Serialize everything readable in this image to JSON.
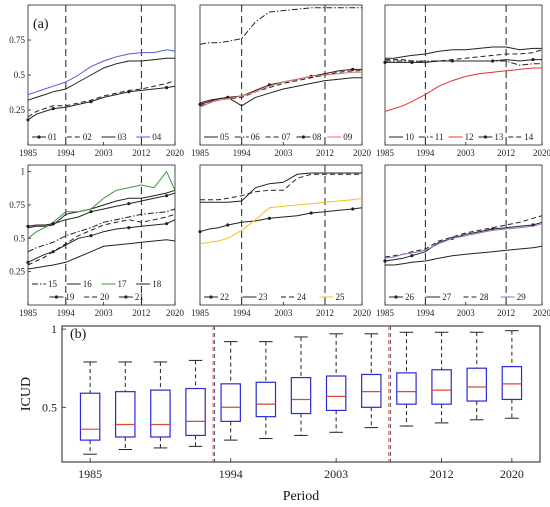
{
  "panel_label_a": "(a)",
  "panel_label_b": "(b)",
  "chart_data": [
    {
      "type": "line",
      "panel": 1,
      "x": [
        1985,
        1987,
        1989,
        1991,
        1994,
        1997,
        2000,
        2003,
        2006,
        2009,
        2012,
        2015,
        2018,
        2020
      ],
      "xticks": [
        "1985",
        "1994",
        "2003",
        "2012",
        "2020"
      ],
      "yticks": [
        "0.25",
        "0.5",
        "0.75"
      ],
      "ylim": [
        0.0,
        1.0
      ],
      "series": [
        {
          "name": "01",
          "style": "solid-dot",
          "color": "#222222",
          "values": [
            0.18,
            0.22,
            0.24,
            0.26,
            0.27,
            0.29,
            0.31,
            0.34,
            0.36,
            0.38,
            0.39,
            0.4,
            0.41,
            0.42
          ]
        },
        {
          "name": "02",
          "style": "dash",
          "color": "#222222",
          "values": [
            0.2,
            0.24,
            0.26,
            0.28,
            0.28,
            0.3,
            0.32,
            0.35,
            0.37,
            0.39,
            0.4,
            0.42,
            0.44,
            0.46
          ]
        },
        {
          "name": "03",
          "style": "solid",
          "color": "#222222",
          "values": [
            0.32,
            0.34,
            0.36,
            0.38,
            0.4,
            0.45,
            0.5,
            0.55,
            0.58,
            0.6,
            0.6,
            0.61,
            0.62,
            0.62
          ]
        },
        {
          "name": "04",
          "style": "solid",
          "color": "#4f5bd5",
          "values": [
            0.36,
            0.38,
            0.4,
            0.42,
            0.45,
            0.5,
            0.56,
            0.6,
            0.63,
            0.65,
            0.66,
            0.66,
            0.68,
            0.67
          ]
        }
      ]
    },
    {
      "type": "line",
      "panel": 2,
      "x": [
        1985,
        1987,
        1989,
        1991,
        1994,
        1997,
        2000,
        2003,
        2006,
        2009,
        2012,
        2015,
        2018,
        2020
      ],
      "xticks": [
        "1985",
        "1994",
        "2003",
        "2012",
        "2020"
      ],
      "yticks": [],
      "ylim": [
        0.0,
        1.0
      ],
      "series": [
        {
          "name": "05",
          "style": "solid",
          "color": "#222222",
          "values": [
            0.3,
            0.32,
            0.33,
            0.34,
            0.28,
            0.34,
            0.37,
            0.4,
            0.42,
            0.44,
            0.46,
            0.47,
            0.48,
            0.48
          ]
        },
        {
          "name": "06",
          "style": "dashdot",
          "color": "#222222",
          "values": [
            0.72,
            0.73,
            0.73,
            0.74,
            0.76,
            0.88,
            0.95,
            0.96,
            0.97,
            0.98,
            0.98,
            0.98,
            0.98,
            0.98
          ]
        },
        {
          "name": "07",
          "style": "dash",
          "color": "#222222",
          "values": [
            0.28,
            0.3,
            0.32,
            0.33,
            0.34,
            0.38,
            0.41,
            0.44,
            0.46,
            0.48,
            0.5,
            0.52,
            0.53,
            0.53
          ]
        },
        {
          "name": "08",
          "style": "solid-dot",
          "color": "#222222",
          "values": [
            0.29,
            0.31,
            0.33,
            0.34,
            0.35,
            0.39,
            0.43,
            0.45,
            0.47,
            0.49,
            0.51,
            0.53,
            0.54,
            0.54
          ]
        },
        {
          "name": "09",
          "style": "solid",
          "color": "#e8706a",
          "values": [
            0.27,
            0.3,
            0.32,
            0.33,
            0.35,
            0.38,
            0.42,
            0.45,
            0.47,
            0.49,
            0.5,
            0.51,
            0.52,
            0.52
          ]
        }
      ]
    },
    {
      "type": "line",
      "panel": 3,
      "x": [
        1985,
        1987,
        1989,
        1991,
        1994,
        1997,
        2000,
        2003,
        2006,
        2009,
        2012,
        2015,
        2018,
        2020
      ],
      "xticks": [
        "1985",
        "1994",
        "2003",
        "2012",
        "2020"
      ],
      "yticks": [],
      "ylim": [
        0.0,
        1.0
      ],
      "series": [
        {
          "name": "10",
          "style": "solid",
          "color": "#222222",
          "values": [
            0.62,
            0.62,
            0.63,
            0.64,
            0.65,
            0.67,
            0.68,
            0.68,
            0.69,
            0.7,
            0.7,
            0.68,
            0.69,
            0.69
          ]
        },
        {
          "name": "11",
          "style": "dashdot",
          "color": "#222222",
          "values": [
            0.6,
            0.6,
            0.6,
            0.6,
            0.6,
            0.6,
            0.6,
            0.6,
            0.6,
            0.6,
            0.6,
            0.57,
            0.58,
            0.58
          ]
        },
        {
          "name": "12",
          "style": "solid",
          "color": "#e83030",
          "values": [
            0.24,
            0.26,
            0.28,
            0.31,
            0.36,
            0.42,
            0.46,
            0.49,
            0.51,
            0.52,
            0.53,
            0.54,
            0.55,
            0.55
          ]
        },
        {
          "name": "13",
          "style": "solid-dot",
          "color": "#222222",
          "values": [
            0.59,
            0.59,
            0.59,
            0.59,
            0.59,
            0.6,
            0.6,
            0.6,
            0.6,
            0.6,
            0.61,
            0.6,
            0.61,
            0.61
          ]
        },
        {
          "name": "14",
          "style": "dash",
          "color": "#222222",
          "values": [
            0.61,
            0.61,
            0.61,
            0.6,
            0.59,
            0.6,
            0.61,
            0.62,
            0.63,
            0.64,
            0.65,
            0.65,
            0.66,
            0.68
          ]
        }
      ]
    },
    {
      "type": "line",
      "panel": 4,
      "x": [
        1985,
        1987,
        1989,
        1991,
        1994,
        1997,
        2000,
        2003,
        2006,
        2009,
        2012,
        2015,
        2018,
        2020
      ],
      "xticks": [
        "1985",
        "1994",
        "2003",
        "2012",
        "2020"
      ],
      "yticks": [
        "0.25",
        "0.5",
        "0.75",
        "1"
      ],
      "ylim": [
        0.0,
        1.05
      ],
      "series": [
        {
          "name": "15",
          "style": "dashdot",
          "color": "#222222",
          "values": [
            0.4,
            0.43,
            0.45,
            0.47,
            0.52,
            0.55,
            0.58,
            0.62,
            0.64,
            0.66,
            0.68,
            0.69,
            0.7,
            0.72
          ]
        },
        {
          "name": "16",
          "style": "solid",
          "color": "#222222",
          "values": [
            0.58,
            0.59,
            0.59,
            0.6,
            0.68,
            0.7,
            0.72,
            0.75,
            0.78,
            0.8,
            0.8,
            0.82,
            0.84,
            0.86
          ]
        },
        {
          "name": "17",
          "style": "solid",
          "color": "#3a9a3a",
          "values": [
            0.5,
            0.55,
            0.58,
            0.62,
            0.7,
            0.7,
            0.72,
            0.8,
            0.86,
            0.88,
            0.9,
            0.88,
            1.0,
            0.86
          ]
        },
        {
          "name": "18",
          "style": "solid",
          "color": "#222222",
          "values": [
            0.27,
            0.28,
            0.29,
            0.3,
            0.32,
            0.36,
            0.4,
            0.44,
            0.45,
            0.46,
            0.47,
            0.48,
            0.49,
            0.48
          ]
        },
        {
          "name": "19",
          "style": "solid-dot",
          "color": "#222222",
          "values": [
            0.32,
            0.35,
            0.38,
            0.4,
            0.45,
            0.5,
            0.52,
            0.55,
            0.57,
            0.58,
            0.59,
            0.6,
            0.61,
            0.64
          ]
        },
        {
          "name": "20",
          "style": "dash",
          "color": "#222222",
          "values": [
            0.3,
            0.33,
            0.36,
            0.4,
            0.46,
            0.52,
            0.56,
            0.6,
            0.62,
            0.64,
            0.62,
            0.64,
            0.66,
            0.68
          ]
        },
        {
          "name": "21",
          "style": "solid-dot",
          "color": "#222222",
          "values": [
            0.59,
            0.6,
            0.6,
            0.61,
            0.64,
            0.66,
            0.7,
            0.72,
            0.74,
            0.76,
            0.78,
            0.8,
            0.82,
            0.84
          ]
        }
      ]
    },
    {
      "type": "line",
      "panel": 5,
      "x": [
        1985,
        1987,
        1989,
        1991,
        1994,
        1997,
        2000,
        2003,
        2006,
        2009,
        2012,
        2015,
        2018,
        2020
      ],
      "xticks": [
        "1985",
        "1994",
        "2003",
        "2012",
        "2020"
      ],
      "yticks": [],
      "ylim": [
        0.0,
        1.05
      ],
      "series": [
        {
          "name": "22",
          "style": "solid-dot",
          "color": "#222222",
          "values": [
            0.55,
            0.57,
            0.58,
            0.6,
            0.62,
            0.63,
            0.65,
            0.66,
            0.67,
            0.69,
            0.7,
            0.71,
            0.72,
            0.73
          ]
        },
        {
          "name": "23",
          "style": "solid",
          "color": "#222222",
          "values": [
            0.77,
            0.77,
            0.77,
            0.77,
            0.78,
            0.88,
            0.91,
            0.92,
            0.98,
            0.99,
            0.99,
            0.99,
            0.99,
            0.99
          ]
        },
        {
          "name": "24",
          "style": "dash",
          "color": "#222222",
          "values": [
            0.79,
            0.79,
            0.79,
            0.8,
            0.82,
            0.85,
            0.86,
            0.86,
            0.95,
            0.98,
            0.98,
            0.98,
            0.98,
            0.98
          ]
        },
        {
          "name": "25",
          "style": "solid",
          "color": "#f0c020",
          "values": [
            0.46,
            0.47,
            0.48,
            0.5,
            0.56,
            0.64,
            0.73,
            0.74,
            0.75,
            0.76,
            0.77,
            0.78,
            0.79,
            0.8
          ]
        }
      ]
    },
    {
      "type": "line",
      "panel": 6,
      "x": [
        1985,
        1987,
        1989,
        1991,
        1994,
        1997,
        2000,
        2003,
        2006,
        2009,
        2012,
        2015,
        2018,
        2020
      ],
      "xticks": [
        "1985",
        "1994",
        "2003",
        "2012",
        "2020"
      ],
      "yticks": [],
      "ylim": [
        0.0,
        1.05
      ],
      "series": [
        {
          "name": "26",
          "style": "solid-dot",
          "color": "#222222",
          "values": [
            0.33,
            0.34,
            0.35,
            0.37,
            0.4,
            0.47,
            0.5,
            0.53,
            0.55,
            0.57,
            0.58,
            0.59,
            0.6,
            0.62
          ]
        },
        {
          "name": "27",
          "style": "solid",
          "color": "#222222",
          "values": [
            0.3,
            0.3,
            0.31,
            0.32,
            0.33,
            0.35,
            0.37,
            0.38,
            0.39,
            0.4,
            0.41,
            0.42,
            0.43,
            0.44
          ]
        },
        {
          "name": "28",
          "style": "dash",
          "color": "#222222",
          "values": [
            0.36,
            0.37,
            0.38,
            0.4,
            0.42,
            0.48,
            0.51,
            0.54,
            0.56,
            0.58,
            0.6,
            0.62,
            0.65,
            0.67
          ]
        },
        {
          "name": "29",
          "style": "solid",
          "color": "#9a6ad0",
          "values": [
            0.35,
            0.36,
            0.38,
            0.39,
            0.41,
            0.46,
            0.5,
            0.52,
            0.54,
            0.56,
            0.57,
            0.58,
            0.59,
            0.61
          ]
        }
      ]
    },
    {
      "type": "box",
      "xlabel": "Period",
      "ylabel": "ICUD",
      "xticks": [
        "1985",
        "1994",
        "2003",
        "2012",
        "2020"
      ],
      "yticks": [
        "0.5",
        "1"
      ],
      "ylim": [
        0.15,
        1.02
      ],
      "separators": [
        1,
        2
      ],
      "periods": [
        [
          {
            "year": 1985,
            "min": 0.2,
            "q1": 0.29,
            "median": 0.36,
            "q3": 0.59,
            "max": 0.79
          },
          {
            "year": 1987,
            "min": 0.23,
            "q1": 0.31,
            "median": 0.39,
            "q3": 0.6,
            "max": 0.79
          },
          {
            "year": 1989,
            "min": 0.24,
            "q1": 0.31,
            "median": 0.39,
            "q3": 0.61,
            "max": 0.79
          },
          {
            "year": 1991,
            "min": 0.25,
            "q1": 0.32,
            "median": 0.41,
            "q3": 0.62,
            "max": 0.8
          }
        ],
        [
          {
            "year": 1994,
            "min": 0.29,
            "q1": 0.41,
            "median": 0.5,
            "q3": 0.65,
            "max": 0.92
          },
          {
            "year": 1997,
            "min": 0.3,
            "q1": 0.44,
            "median": 0.52,
            "q3": 0.66,
            "max": 0.92
          },
          {
            "year": 2000,
            "min": 0.32,
            "q1": 0.46,
            "median": 0.55,
            "q3": 0.69,
            "max": 0.95
          },
          {
            "year": 2003,
            "min": 0.34,
            "q1": 0.48,
            "median": 0.57,
            "q3": 0.7,
            "max": 0.97
          },
          {
            "year": 2006,
            "min": 0.37,
            "q1": 0.5,
            "median": 0.6,
            "q3": 0.71,
            "max": 0.97
          }
        ],
        [
          {
            "year": 2009,
            "min": 0.38,
            "q1": 0.52,
            "median": 0.6,
            "q3": 0.72,
            "max": 0.98
          },
          {
            "year": 2012,
            "min": 0.4,
            "q1": 0.52,
            "median": 0.61,
            "q3": 0.74,
            "max": 0.98
          },
          {
            "year": 2015,
            "min": 0.42,
            "q1": 0.54,
            "median": 0.63,
            "q3": 0.75,
            "max": 0.98
          },
          {
            "year": 2020,
            "min": 0.43,
            "q1": 0.55,
            "median": 0.65,
            "q3": 0.76,
            "max": 0.99
          }
        ]
      ]
    }
  ]
}
